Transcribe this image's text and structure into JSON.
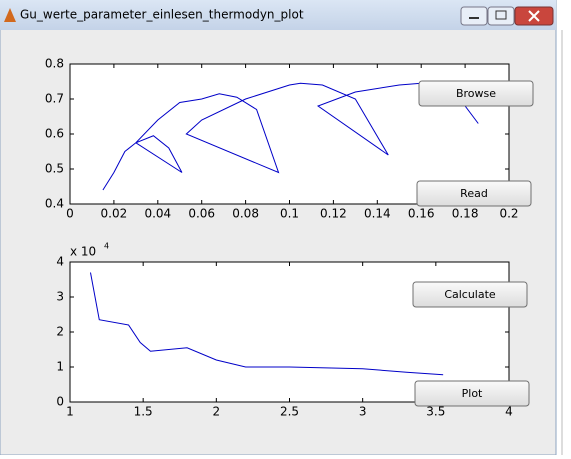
{
  "window": {
    "title": "Gu_werte_parameter_einlesen_thermodyn_plot",
    "buttons": [
      "Browse",
      "Read",
      "Calculate",
      "Plot"
    ]
  },
  "chart_data": [
    {
      "type": "line",
      "color": "#0000c8",
      "x": [
        0.015,
        0.02,
        0.025,
        0.03,
        0.038,
        0.045,
        0.051,
        0.03,
        0.04,
        0.05,
        0.06,
        0.068,
        0.076,
        0.085,
        0.095,
        0.053,
        0.06,
        0.08,
        0.1,
        0.105,
        0.115,
        0.13,
        0.145,
        0.113,
        0.13,
        0.15,
        0.16,
        0.17,
        0.18,
        0.186
      ],
      "values": [
        0.44,
        0.49,
        0.55,
        0.575,
        0.595,
        0.56,
        0.49,
        0.575,
        0.64,
        0.69,
        0.7,
        0.715,
        0.705,
        0.67,
        0.49,
        0.6,
        0.64,
        0.7,
        0.74,
        0.745,
        0.74,
        0.7,
        0.54,
        0.68,
        0.72,
        0.74,
        0.745,
        0.73,
        0.68,
        0.63
      ],
      "xlim": [
        0,
        0.2
      ],
      "xticks": [
        0,
        0.02,
        0.04,
        0.06,
        0.08,
        0.1,
        0.12,
        0.14,
        0.16,
        0.18,
        0.2
      ],
      "ylim": [
        0.4,
        0.8
      ],
      "yticks": [
        0.4,
        0.5,
        0.6,
        0.7,
        0.8
      ]
    },
    {
      "type": "line",
      "color": "#0000c8",
      "y_multiplier": {
        "base": "x 10",
        "exponent": "4"
      },
      "x": [
        1.14,
        1.2,
        1.4,
        1.48,
        1.55,
        1.8,
        2.0,
        2.2,
        2.5,
        3.0,
        3.3,
        3.55
      ],
      "values": [
        3.7,
        2.35,
        2.2,
        1.7,
        1.45,
        1.55,
        1.2,
        1.0,
        1.0,
        0.95,
        0.85,
        0.78
      ],
      "xlim": [
        1,
        4
      ],
      "xticks": [
        1,
        1.5,
        2,
        2.5,
        3,
        3.5,
        4
      ],
      "ylim": [
        0,
        4
      ],
      "yticks": [
        0,
        1,
        2,
        3,
        4
      ]
    }
  ]
}
